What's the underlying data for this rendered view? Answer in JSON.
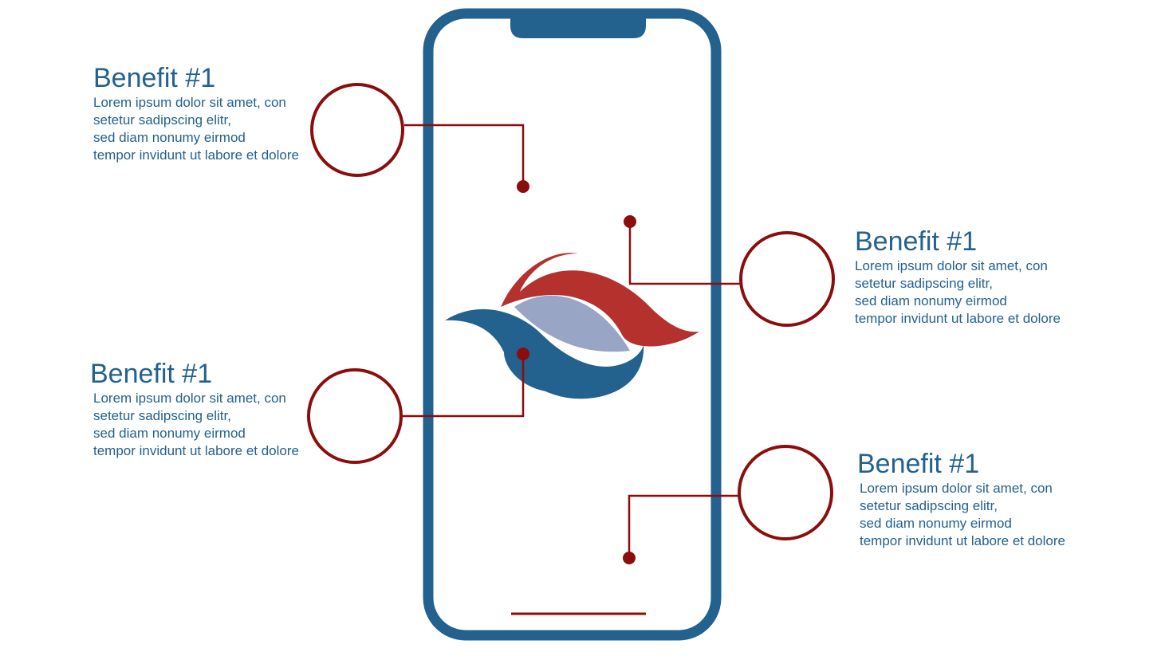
{
  "colors": {
    "phone_frame": "#23618f",
    "accent_red": "#8b0d0d",
    "logo_red": "#b5312e",
    "logo_blue": "#23618f",
    "logo_lavender": "#98a5c4",
    "text_blue": "#23618f"
  },
  "benefits": [
    {
      "title": "Benefit #1",
      "lines": [
        "Lorem ipsum dolor sit amet, con",
        "setetur sadipscing elitr,",
        "sed diam nonumy eirmod",
        "tempor invidunt ut labore et dolore"
      ]
    },
    {
      "title": "Benefit #1",
      "lines": [
        "Lorem ipsum dolor sit amet, con",
        "setetur sadipscing elitr,",
        "sed diam nonumy eirmod",
        "tempor invidunt ut labore et dolore"
      ]
    },
    {
      "title": "Benefit #1",
      "lines": [
        "Lorem ipsum dolor sit amet, con",
        "setetur sadipscing elitr,",
        "sed diam nonumy eirmod",
        "tempor invidunt ut labore et dolore"
      ]
    },
    {
      "title": "Benefit #1",
      "lines": [
        "Lorem ipsum dolor sit amet, con",
        "setetur sadipscing elitr,",
        "sed diam nonumy eirmod",
        "tempor invidunt ut labore et dolore"
      ]
    }
  ]
}
